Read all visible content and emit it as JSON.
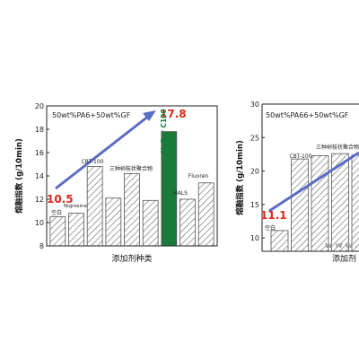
{
  "chart_data": [
    {
      "type": "bar",
      "annotation": "50wt%PA6+50wt%GF",
      "ylabel": "熔融指数 (g/10min)",
      "xlabel": "添加剂种类",
      "ylim": [
        8,
        20
      ],
      "yticks": [
        8,
        10,
        12,
        14,
        16,
        18,
        20
      ],
      "categories": [
        "空白",
        "Nigrosine",
        "CBT-100",
        "",
        "三种树枝状聚合物",
        "",
        "HyPer C100",
        "HALS",
        "Fluoren"
      ],
      "values": [
        10.5,
        10.8,
        14.8,
        12.1,
        14.2,
        11.9,
        17.8,
        12.0,
        13.4
      ],
      "highlight_index": 6,
      "highlight_color": "#1a7a3a",
      "arrow_from_label": "10.5",
      "arrow_to_label": "17.8",
      "label_color": "#e0271b",
      "arrow_color": "#5b6cc4"
    },
    {
      "type": "bar",
      "annotation": "50wt%PA66+50wt%GF",
      "ylabel": "熔融指数 (g/10min)",
      "xlabel": "添加剂",
      "ylim": [
        8,
        30
      ],
      "yticks": [
        10,
        15,
        20,
        25,
        30
      ],
      "categories": [
        "空白",
        "CBT-100",
        "三种树枝状聚合物",
        "",
        ""
      ],
      "values": [
        11.1,
        21.8,
        22.3,
        22.6,
        22.4
      ],
      "arrow_from_label": "11.1",
      "label_color": "#e0271b",
      "arrow_color": "#5b6cc4",
      "watermark": "www.z"
    }
  ]
}
